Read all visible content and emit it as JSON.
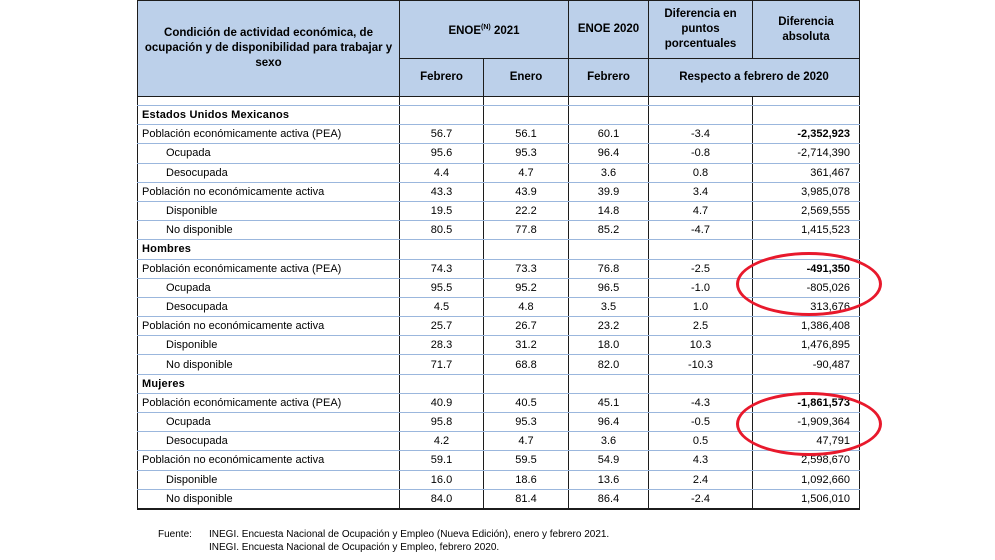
{
  "header": {
    "condition_label": "Condición de actividad económica, de ocupación y de disponibilidad para trabajar y sexo",
    "enoe_2021_prefix": "ENOE",
    "enoe_2021_sup": "(N)",
    "enoe_2021_suffix": " 2021",
    "enoe_2020": "ENOE 2020",
    "diff_points": "Diferencia en puntos porcentuales",
    "diff_abs": "Diferencia absoluta",
    "feb_2021": "Febrero",
    "jan_2021": "Enero",
    "feb_2020": "Febrero",
    "respecto": "Respecto a febrero de 2020"
  },
  "sections": [
    {
      "title": "Estados Unidos Mexicanos",
      "rows": [
        {
          "label": "Población económicamente activa (PEA)",
          "sub": false,
          "feb21": "56.7",
          "jan21": "56.1",
          "feb20": "60.1",
          "pp": "-3.4",
          "abs": "-2,352,923",
          "abs_bold": true
        },
        {
          "label": "Ocupada",
          "sub": true,
          "feb21": "95.6",
          "jan21": "95.3",
          "feb20": "96.4",
          "pp": "-0.8",
          "abs": "-2,714,390",
          "abs_bold": false
        },
        {
          "label": "Desocupada",
          "sub": true,
          "feb21": "4.4",
          "jan21": "4.7",
          "feb20": "3.6",
          "pp": "0.8",
          "abs": "361,467",
          "abs_bold": false
        },
        {
          "label": "Población no económicamente activa",
          "sub": false,
          "feb21": "43.3",
          "jan21": "43.9",
          "feb20": "39.9",
          "pp": "3.4",
          "abs": "3,985,078",
          "abs_bold": false
        },
        {
          "label": "Disponible",
          "sub": true,
          "feb21": "19.5",
          "jan21": "22.2",
          "feb20": "14.8",
          "pp": "4.7",
          "abs": "2,569,555",
          "abs_bold": false
        },
        {
          "label": "No disponible",
          "sub": true,
          "feb21": "80.5",
          "jan21": "77.8",
          "feb20": "85.2",
          "pp": "-4.7",
          "abs": "1,415,523",
          "abs_bold": false
        }
      ]
    },
    {
      "title": "Hombres",
      "rows": [
        {
          "label": "Población económicamente activa (PEA)",
          "sub": false,
          "feb21": "74.3",
          "jan21": "73.3",
          "feb20": "76.8",
          "pp": "-2.5",
          "abs": "-491,350",
          "abs_bold": true
        },
        {
          "label": "Ocupada",
          "sub": true,
          "feb21": "95.5",
          "jan21": "95.2",
          "feb20": "96.5",
          "pp": "-1.0",
          "abs": "-805,026",
          "abs_bold": false
        },
        {
          "label": "Desocupada",
          "sub": true,
          "feb21": "4.5",
          "jan21": "4.8",
          "feb20": "3.5",
          "pp": "1.0",
          "abs": "313,676",
          "abs_bold": false
        },
        {
          "label": "Población no económicamente activa",
          "sub": false,
          "feb21": "25.7",
          "jan21": "26.7",
          "feb20": "23.2",
          "pp": "2.5",
          "abs": "1,386,408",
          "abs_bold": false
        },
        {
          "label": "Disponible",
          "sub": true,
          "feb21": "28.3",
          "jan21": "31.2",
          "feb20": "18.0",
          "pp": "10.3",
          "abs": "1,476,895",
          "abs_bold": false
        },
        {
          "label": "No disponible",
          "sub": true,
          "feb21": "71.7",
          "jan21": "68.8",
          "feb20": "82.0",
          "pp": "-10.3",
          "abs": "-90,487",
          "abs_bold": false
        }
      ]
    },
    {
      "title": "Mujeres",
      "rows": [
        {
          "label": "Población económicamente activa (PEA)",
          "sub": false,
          "feb21": "40.9",
          "jan21": "40.5",
          "feb20": "45.1",
          "pp": "-4.3",
          "abs": "-1,861,573",
          "abs_bold": true
        },
        {
          "label": "Ocupada",
          "sub": true,
          "feb21": "95.8",
          "jan21": "95.3",
          "feb20": "96.4",
          "pp": "-0.5",
          "abs": "-1,909,364",
          "abs_bold": false
        },
        {
          "label": "Desocupada",
          "sub": true,
          "feb21": "4.2",
          "jan21": "4.7",
          "feb20": "3.6",
          "pp": "0.5",
          "abs": "47,791",
          "abs_bold": false
        },
        {
          "label": "Población no económicamente activa",
          "sub": false,
          "feb21": "59.1",
          "jan21": "59.5",
          "feb20": "54.9",
          "pp": "4.3",
          "abs": "2,598,670",
          "abs_bold": false
        },
        {
          "label": "Disponible",
          "sub": true,
          "feb21": "16.0",
          "jan21": "18.6",
          "feb20": "13.6",
          "pp": "2.4",
          "abs": "1,092,660",
          "abs_bold": false
        },
        {
          "label": "No disponible",
          "sub": true,
          "feb21": "84.0",
          "jan21": "81.4",
          "feb20": "86.4",
          "pp": "-2.4",
          "abs": "1,506,010",
          "abs_bold": false
        }
      ]
    }
  ],
  "notes": {
    "fuente_label": "Fuente:",
    "line1": "INEGI. Encuesta Nacional de Ocupación y Empleo (Nueva Edición), enero y febrero 2021.",
    "line2": "INEGI. Encuesta Nacional de Ocupación y Empleo, febrero 2020."
  },
  "colors": {
    "header_fill": "#bcd0ea",
    "highlight_oval": "#e8192c"
  }
}
